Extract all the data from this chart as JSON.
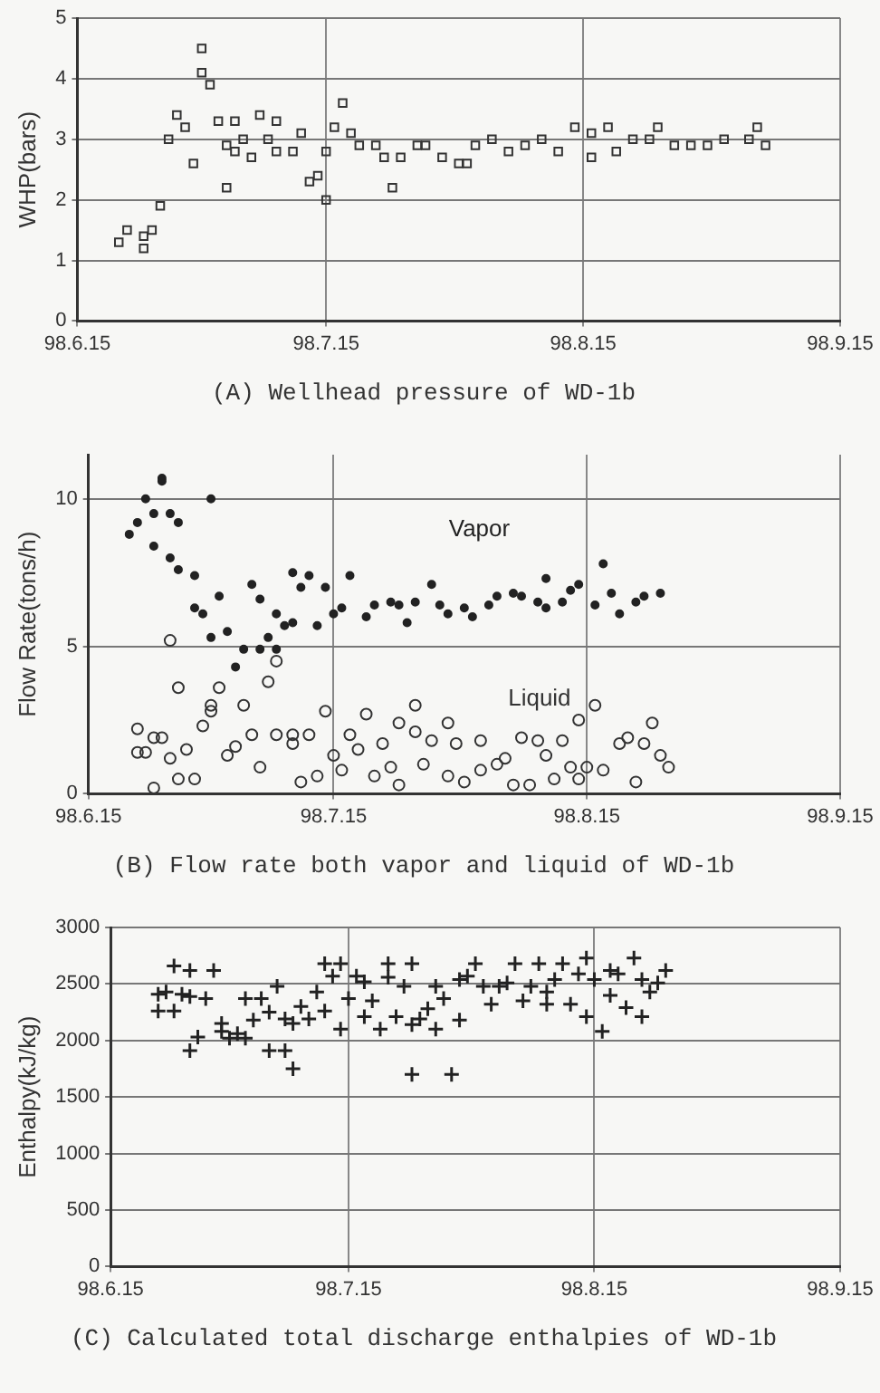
{
  "chart_data": [
    {
      "type": "scatter",
      "title": "(A) Wellhead pressure of WD-1b",
      "ylabel": "WHP(bars)",
      "xlim": [
        "--06-15",
        "--09-15"
      ],
      "xticks": [
        {
          "value": "--06-15",
          "label": "98.6.15"
        },
        {
          "value": "--07-15",
          "label": "98.7.15"
        },
        {
          "value": "--08-15",
          "label": "98.8.15"
        },
        {
          "value": "--09-15",
          "label": "98.9.15"
        }
      ],
      "ylim": [
        0,
        5
      ],
      "yticks": [
        0,
        1,
        2,
        3,
        4,
        5
      ],
      "grid": true,
      "legend": false,
      "series": [
        {
          "color": "#333333",
          "marker": "square",
          "x": [
            "--06-20",
            "--06-21",
            "--06-23",
            "--06-23",
            "--06-24",
            "--06-25",
            "--06-26",
            "--06-27",
            "--06-28",
            "--06-29",
            "--06-30",
            "--06-30",
            "--07-01",
            "--07-02",
            "--07-03",
            "--07-03",
            "--07-04",
            "--07-04",
            "--07-05",
            "--07-06",
            "--07-07",
            "--07-08",
            "--07-09",
            "--07-09",
            "--07-11",
            "--07-12",
            "--07-13",
            "--07-14",
            "--07-15",
            "--07-15",
            "--07-16",
            "--07-17",
            "--07-18",
            "--07-19",
            "--07-21",
            "--07-22",
            "--07-23",
            "--07-24",
            "--07-26",
            "--07-27",
            "--07-29",
            "--07-31",
            "--08-01",
            "--08-02",
            "--08-04",
            "--08-06",
            "--08-08",
            "--08-10",
            "--08-12",
            "--08-14",
            "--08-16",
            "--08-16",
            "--08-18",
            "--08-19",
            "--08-21",
            "--08-23",
            "--08-24",
            "--08-26",
            "--08-28",
            "--08-30",
            "--09-01",
            "--09-04",
            "--09-05",
            "--09-06"
          ],
          "values": [
            1.3,
            1.5,
            1.4,
            1.2,
            1.5,
            1.9,
            3.0,
            3.4,
            3.2,
            2.6,
            4.5,
            4.1,
            3.9,
            3.3,
            2.9,
            2.2,
            2.8,
            3.3,
            3.0,
            2.7,
            3.4,
            3.0,
            3.3,
            2.8,
            2.8,
            3.1,
            2.3,
            2.4,
            2.8,
            2.0,
            3.2,
            3.6,
            3.1,
            2.9,
            2.9,
            2.7,
            2.2,
            2.7,
            2.9,
            2.9,
            2.7,
            2.6,
            2.6,
            2.9,
            3.0,
            2.8,
            2.9,
            3.0,
            2.8,
            3.2,
            3.1,
            2.7,
            3.2,
            2.8,
            3.0,
            3.0,
            3.2,
            2.9,
            2.9,
            2.9,
            3.0,
            3.0,
            3.2,
            2.9
          ]
        }
      ]
    },
    {
      "type": "scatter",
      "title": "(B) Flow rate both vapor and liquid of WD-1b",
      "ylabel": "Flow Rate(tons/h)",
      "xlim": [
        "--06-15",
        "--09-15"
      ],
      "xticks": [
        {
          "value": "--06-15",
          "label": "98.6.15"
        },
        {
          "value": "--07-15",
          "label": "98.7.15"
        },
        {
          "value": "--08-15",
          "label": "98.8.15"
        },
        {
          "value": "--09-15",
          "label": "98.9.15"
        }
      ],
      "ylim": [
        0,
        11.5
      ],
      "yticks": [
        0,
        5,
        10
      ],
      "grid": true,
      "legend": false,
      "series": [
        {
          "name": "Vapor",
          "color": "#222222",
          "marker": "circle",
          "x": [
            "--06-20",
            "--06-21",
            "--06-22",
            "--06-23",
            "--06-23",
            "--06-24",
            "--06-24",
            "--06-25",
            "--06-26",
            "--06-25",
            "--06-26",
            "--06-28",
            "--06-28",
            "--06-29",
            "--06-30",
            "--06-30",
            "--07-01",
            "--07-02",
            "--07-03",
            "--07-04",
            "--07-05",
            "--07-06",
            "--07-06",
            "--07-07",
            "--07-08",
            "--07-08",
            "--07-09",
            "--07-10",
            "--07-10",
            "--07-11",
            "--07-12",
            "--07-13",
            "--07-14",
            "--07-15",
            "--07-16",
            "--07-17",
            "--07-19",
            "--07-20",
            "--07-22",
            "--07-23",
            "--07-24",
            "--07-25",
            "--07-27",
            "--07-28",
            "--07-29",
            "--07-31",
            "--08-01",
            "--08-03",
            "--08-04",
            "--08-06",
            "--08-07",
            "--08-09",
            "--08-10",
            "--08-10",
            "--08-12",
            "--08-13",
            "--08-14",
            "--08-16",
            "--08-17",
            "--08-18",
            "--08-19",
            "--08-21",
            "--08-22",
            "--08-24"
          ],
          "values": [
            8.8,
            9.2,
            10.0,
            9.5,
            8.4,
            10.6,
            10.7,
            9.5,
            9.2,
            8.0,
            7.6,
            7.4,
            6.3,
            6.1,
            5.3,
            10.0,
            6.7,
            5.5,
            4.3,
            4.9,
            7.1,
            4.9,
            6.6,
            5.3,
            6.1,
            4.9,
            5.7,
            5.8,
            7.5,
            7.0,
            7.4,
            5.7,
            7.0,
            6.1,
            6.3,
            7.4,
            6.0,
            6.4,
            6.5,
            6.4,
            5.8,
            6.5,
            7.1,
            6.4,
            6.1,
            6.3,
            6.0,
            6.4,
            6.7,
            6.8,
            6.7,
            6.5,
            7.3,
            6.3,
            6.5,
            6.9,
            7.1,
            6.4,
            7.8,
            6.8,
            6.1,
            6.5,
            6.7,
            6.8
          ]
        },
        {
          "name": "Liquid",
          "color": "#333333",
          "marker": "circle",
          "x": [
            "--06-21",
            "--06-21",
            "--06-22",
            "--06-23",
            "--06-23",
            "--06-24",
            "--06-25",
            "--06-25",
            "--06-26",
            "--06-26",
            "--06-27",
            "--06-28",
            "--06-29",
            "--06-30",
            "--06-30",
            "--07-01",
            "--07-02",
            "--07-03",
            "--07-04",
            "--07-05",
            "--07-06",
            "--07-07",
            "--07-08",
            "--07-08",
            "--07-10",
            "--07-10",
            "--07-11",
            "--07-12",
            "--07-13",
            "--07-14",
            "--07-15",
            "--07-16",
            "--07-17",
            "--07-18",
            "--07-19",
            "--07-20",
            "--07-21",
            "--07-22",
            "--07-23",
            "--07-23",
            "--07-25",
            "--07-25",
            "--07-26",
            "--07-27",
            "--07-29",
            "--07-29",
            "--07-30",
            "--07-31",
            "--08-02",
            "--08-02",
            "--08-04",
            "--08-05",
            "--08-06",
            "--08-07",
            "--08-08",
            "--08-09",
            "--08-10",
            "--08-11",
            "--08-12",
            "--08-13",
            "--08-14",
            "--08-14",
            "--08-15",
            "--08-16",
            "--08-17",
            "--08-19",
            "--08-20",
            "--08-21",
            "--08-22",
            "--08-23",
            "--08-24",
            "--08-25"
          ],
          "values": [
            2.2,
            1.4,
            1.4,
            0.2,
            1.9,
            1.9,
            5.2,
            1.2,
            0.5,
            3.6,
            1.5,
            0.5,
            2.3,
            2.8,
            3.0,
            3.6,
            1.3,
            1.6,
            3.0,
            2.0,
            0.9,
            3.8,
            2.0,
            4.5,
            2.0,
            1.7,
            0.4,
            2.0,
            0.6,
            2.8,
            1.3,
            0.8,
            2.0,
            1.5,
            2.7,
            0.6,
            1.7,
            0.9,
            2.4,
            0.3,
            2.1,
            3.0,
            1.0,
            1.8,
            0.6,
            2.4,
            1.7,
            0.4,
            0.8,
            1.8,
            1.0,
            1.2,
            0.3,
            1.9,
            0.3,
            1.8,
            1.3,
            0.5,
            1.8,
            0.9,
            0.5,
            2.5,
            0.9,
            3.0,
            0.8,
            1.7,
            1.9,
            0.4,
            1.7,
            2.4,
            1.3,
            0.9
          ]
        }
      ]
    },
    {
      "type": "scatter",
      "title": "(C) Calculated total discharge enthalpies of WD-1b",
      "ylabel": "Enthalpy(kJ/kg)",
      "xlim": [
        "--06-15",
        "--09-15"
      ],
      "xticks": [
        {
          "value": "--06-15",
          "label": "98.6.15"
        },
        {
          "value": "--07-15",
          "label": "98.7.15"
        },
        {
          "value": "--08-15",
          "label": "98.8.15"
        },
        {
          "value": "--09-15",
          "label": "98.9.15"
        }
      ],
      "ylim": [
        0,
        3000
      ],
      "yticks": [
        0,
        500,
        1000,
        1500,
        2000,
        2500,
        3000
      ],
      "grid": true,
      "legend": false,
      "series": [
        {
          "color": "#222222",
          "marker": "cross",
          "x": [
            "--06-21",
            "--06-21",
            "--06-22",
            "--06-23",
            "--06-23",
            "--06-24",
            "--06-25",
            "--06-25",
            "--06-25",
            "--06-26",
            "--06-27",
            "--06-28",
            "--06-29",
            "--06-29",
            "--06-30",
            "--07-01",
            "--07-02",
            "--07-02",
            "--07-03",
            "--07-04",
            "--07-05",
            "--07-05",
            "--07-06",
            "--07-07",
            "--07-07",
            "--07-08",
            "--07-08",
            "--07-09",
            "--07-10",
            "--07-11",
            "--07-12",
            "--07-12",
            "--07-13",
            "--07-14",
            "--07-14",
            "--07-15",
            "--07-16",
            "--07-17",
            "--07-17",
            "--07-18",
            "--07-19",
            "--07-20",
            "--07-20",
            "--07-21",
            "--07-22",
            "--07-23",
            "--07-23",
            "--07-23",
            "--07-24",
            "--07-25",
            "--07-26",
            "--07-26",
            "--07-27",
            "--07-28",
            "--07-29",
            "--07-29",
            "--07-30",
            "--07-31",
            "--08-01",
            "--08-02",
            "--08-03",
            "--08-04",
            "--08-05",
            "--08-06",
            "--08-07",
            "--08-08",
            "--08-09",
            "--08-09",
            "--08-10",
            "--08-11",
            "--08-12",
            "--08-13",
            "--08-14",
            "--08-14",
            "--08-15",
            "--08-16",
            "--08-17",
            "--08-17",
            "--08-18",
            "--08-19",
            "--08-20",
            "--08-21",
            "--08-21",
            "--08-22",
            "--08-23",
            "--08-24"
          ],
          "values": [
            2260,
            2410,
            2430,
            2660,
            2260,
            2410,
            1910,
            2390,
            2620,
            2030,
            2370,
            2620,
            2150,
            2080,
            2020,
            2060,
            2370,
            2020,
            2180,
            2370,
            1910,
            2250,
            2480,
            2190,
            1910,
            2150,
            1750,
            2300,
            2190,
            2430,
            2260,
            2680,
            2570,
            2680,
            2100,
            2370,
            2570,
            2520,
            2210,
            2350,
            2100,
            2680,
            2560,
            2210,
            2480,
            2140,
            2680,
            1700,
            2190,
            2280,
            2100,
            2480,
            2370,
            1700,
            2540,
            2180,
            2570,
            2680,
            2480,
            2320,
            2480,
            2510,
            2680,
            2350,
            2480,
            2680,
            2320,
            2430,
            2540,
            2680,
            2320,
            2590,
            2730,
            2210,
            2540,
            2080,
            2620,
            2400,
            2590,
            2290,
            2730,
            2540,
            2210,
            2430,
            2510,
            2620
          ]
        }
      ]
    }
  ]
}
